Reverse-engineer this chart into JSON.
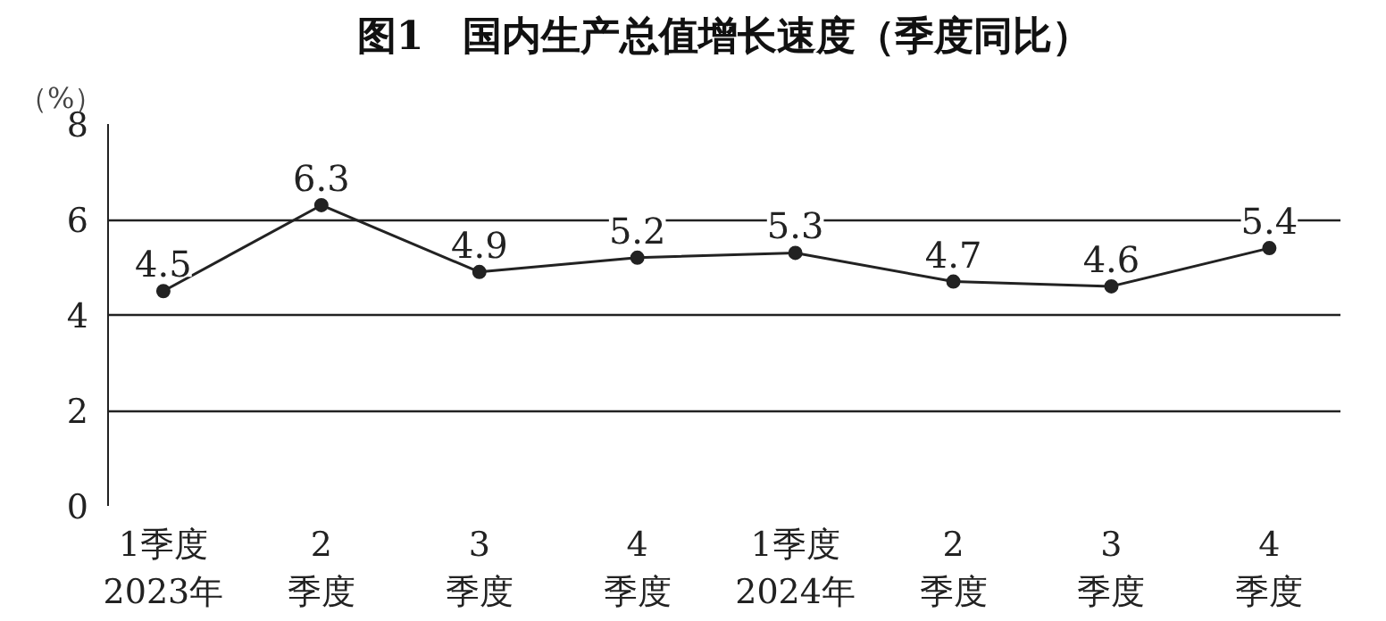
{
  "chart_data": {
    "type": "line",
    "title": "图1　国内生产总值增长速度（季度同比）",
    "ylabel": "（%）",
    "categories": [
      "1季度\n2023年",
      "2\n季度",
      "3\n季度",
      "4\n季度",
      "1季度\n2024年",
      "2\n季度",
      "3\n季度",
      "4\n季度"
    ],
    "values": [
      4.5,
      6.3,
      4.9,
      5.2,
      5.3,
      4.7,
      4.6,
      5.4
    ],
    "color": "#222222",
    "ylim": [
      0,
      8
    ],
    "yticks": [
      0,
      2,
      4,
      6,
      8
    ],
    "grid": "y",
    "marker": "circle",
    "line_style": "solid",
    "data_labels": true
  }
}
